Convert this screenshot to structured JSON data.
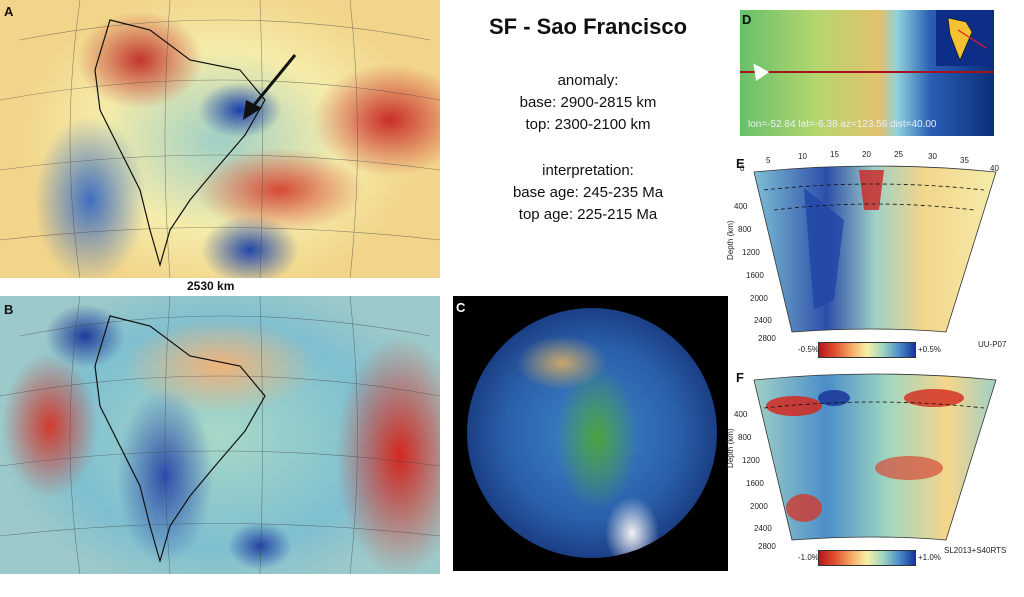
{
  "panels": {
    "a": "A",
    "b": "B",
    "c": "C",
    "d": "D",
    "e": "E",
    "f": "F"
  },
  "scale_label": "2530 km",
  "title": "SF - Sao Francisco",
  "anomaly": {
    "heading": "anomaly:",
    "base": "base: 2900-2815 km",
    "top": "top: 2300-2100 km"
  },
  "interpretation": {
    "heading": "interpretation:",
    "base_age": "base age: 245-235 Ma",
    "top_age": "top age: 225-215 Ma"
  },
  "profile_caption": "lon=-52.84 lat=-6.38 az=123.56 dist=40.00",
  "section_e": {
    "top_ticks": [
      "0",
      "5",
      "10",
      "15",
      "20",
      "25",
      "30",
      "35",
      "40"
    ],
    "depth_ticks": [
      "400",
      "800",
      "1200",
      "1600",
      "2000",
      "2400",
      "2800"
    ],
    "depth_label": "Depth (km)",
    "model": "UU-P07",
    "cbar_min": "-0.5%",
    "cbar_max": "+0.5%"
  },
  "section_f": {
    "depth_ticks": [
      "400",
      "800",
      "1200",
      "1600",
      "2000",
      "2400",
      "2800"
    ],
    "depth_label": "Depth (km)",
    "model": "SL2013+S40RTS",
    "cbar_min": "-1.0%",
    "cbar_max": "+1.0%"
  },
  "colors": {
    "fast": "#16359c",
    "slow": "#b8161b",
    "profile_line": "#a8121b"
  }
}
